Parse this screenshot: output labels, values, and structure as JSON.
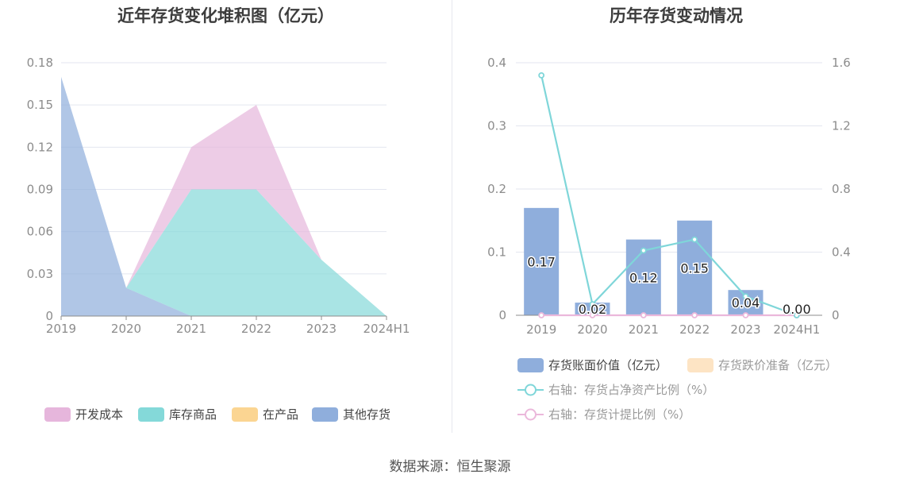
{
  "source": "数据来源：恒生聚源",
  "colors": {
    "kaifa": "#e6b6dc",
    "kucun": "#84d9d9",
    "zaichan": "#fbd592",
    "qita": "#8faedc",
    "bar_main": "#8faedc",
    "bar_reserve": "#fde4c4",
    "line_ratio": "#7fd6d9",
    "line_provision": "#ebb8db",
    "grid": "#e3e6ef",
    "axis_text": "#8c8c8c"
  },
  "chart_data": [
    {
      "type": "area",
      "stacked": true,
      "title": "近年存货变化堆积图（亿元）",
      "categories": [
        "2019",
        "2020",
        "2021",
        "2022",
        "2023",
        "2024H1"
      ],
      "yticks": [
        "0",
        "0.03",
        "0.06",
        "0.09",
        "0.12",
        "0.15",
        "0.18"
      ],
      "ylim": [
        0,
        0.18
      ],
      "grid": true,
      "legend_position": "bottom",
      "series": [
        {
          "name": "其他存货",
          "color_key": "qita",
          "values": [
            0.17,
            0.02,
            0.0,
            0.0,
            0.0,
            0.0
          ]
        },
        {
          "name": "在产品",
          "color_key": "zaichan",
          "values": [
            0.0,
            0.0,
            0.0,
            0.0,
            0.0,
            0.0
          ]
        },
        {
          "name": "库存商品",
          "color_key": "kucun",
          "values": [
            0.0,
            0.0,
            0.09,
            0.09,
            0.04,
            0.0
          ]
        },
        {
          "name": "开发成本",
          "color_key": "kaifa",
          "values": [
            0.0,
            0.0,
            0.03,
            0.06,
            0.0,
            0.0
          ]
        }
      ],
      "legend": [
        {
          "name": "开发成本",
          "color_key": "kaifa"
        },
        {
          "name": "库存商品",
          "color_key": "kucun"
        },
        {
          "name": "在产品",
          "color_key": "zaichan"
        },
        {
          "name": "其他存货",
          "color_key": "qita"
        }
      ]
    },
    {
      "type": "bar",
      "title": "历年存货变动情况",
      "categories": [
        "2019",
        "2020",
        "2021",
        "2022",
        "2023",
        "2024H1"
      ],
      "left_yticks": [
        "0",
        "0.1",
        "0.2",
        "0.3",
        "0.4"
      ],
      "left_ylim": [
        0,
        0.4
      ],
      "right_yticks": [
        "0",
        "0.4",
        "0.8",
        "1.2",
        "1.6"
      ],
      "right_ylim": [
        0,
        1.6
      ],
      "grid": true,
      "legend_position": "bottom",
      "bars": [
        {
          "name": "存货账面价值（亿元）",
          "color_key": "bar_main",
          "values": [
            0.17,
            0.02,
            0.12,
            0.15,
            0.04,
            0.0
          ],
          "labels": [
            "0.17",
            "0.02",
            "0.12",
            "0.15",
            "0.04",
            "0.00"
          ]
        },
        {
          "name": "存货跌价准备（亿元）",
          "color_key": "bar_reserve",
          "values": [
            0,
            0,
            0,
            0,
            0,
            0
          ]
        }
      ],
      "lines": [
        {
          "name": "右轴：存货占净资产比例（%）",
          "color_key": "line_ratio",
          "values": [
            1.52,
            0.07,
            0.41,
            0.48,
            0.12,
            0.0
          ]
        },
        {
          "name": "右轴：存货计提比例（%）",
          "color_key": "line_provision",
          "values": [
            0,
            0,
            0,
            0,
            0,
            0
          ]
        }
      ]
    }
  ]
}
